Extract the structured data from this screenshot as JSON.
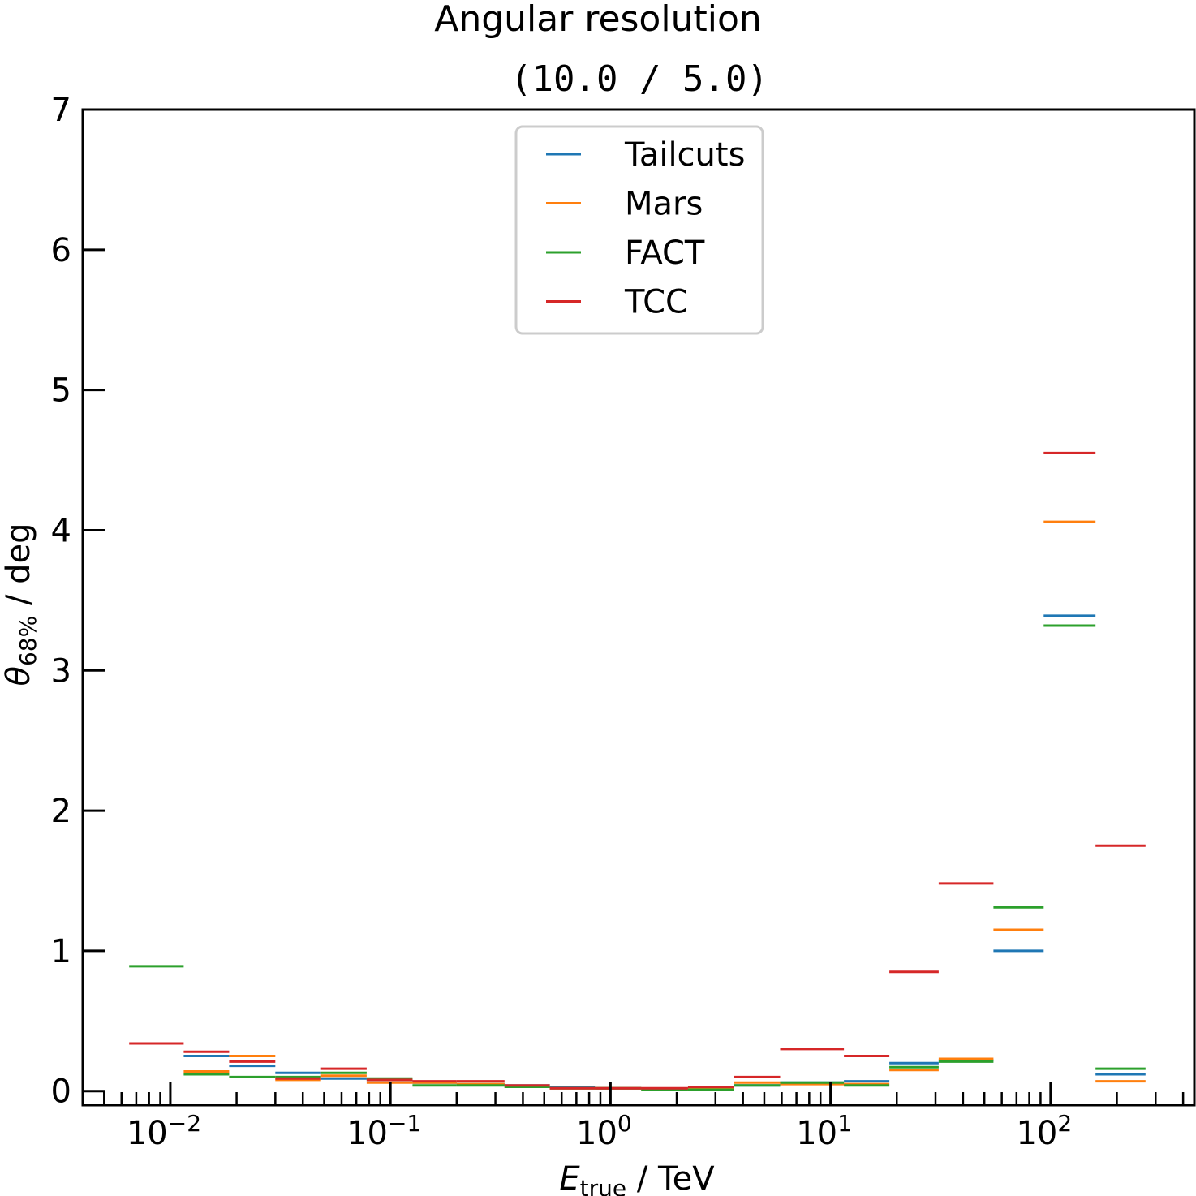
{
  "chart_data": {
    "type": "step",
    "title": "Angular resolution",
    "subtitle": "(10.0 / 5.0)",
    "xlabel": {
      "main": "E",
      "sub": "true",
      "suffix": " / TeV"
    },
    "ylabel": {
      "main": "θ",
      "sub": "68%",
      "suffix": " / deg"
    },
    "xscale": "log",
    "xlim": [
      0.004,
      450
    ],
    "ylim": [
      -0.1,
      7
    ],
    "yticks": [
      "0",
      "1",
      "2",
      "3",
      "4",
      "5",
      "6",
      "7"
    ],
    "xticks": [
      {
        "base": "10",
        "exp": "−2"
      },
      {
        "base": "10",
        "exp": "−1"
      },
      {
        "base": "10",
        "exp": "0"
      },
      {
        "base": "10",
        "exp": "1"
      },
      {
        "base": "10",
        "exp": "2"
      }
    ],
    "grid": false,
    "legend_position": "top-center",
    "series": [
      {
        "name": "Tailcuts",
        "color": "#1f77b4",
        "bins": [
          [
            0.0115,
            0.0185,
            0.25
          ],
          [
            0.0185,
            0.03,
            0.18
          ],
          [
            0.03,
            0.048,
            0.13
          ],
          [
            0.048,
            0.078,
            0.09
          ],
          [
            0.078,
            0.126,
            0.08
          ],
          [
            0.126,
            0.2,
            0.06
          ],
          [
            0.2,
            0.33,
            0.05
          ],
          [
            0.33,
            0.53,
            0.04
          ],
          [
            0.53,
            0.85,
            0.03
          ],
          [
            0.85,
            1.38,
            0.02
          ],
          [
            1.38,
            2.25,
            0.015
          ],
          [
            2.25,
            3.65,
            0.02
          ],
          [
            3.65,
            5.9,
            0.04
          ],
          [
            5.9,
            11.5,
            0.06
          ],
          [
            11.5,
            18.5,
            0.07
          ],
          [
            18.5,
            31,
            0.2
          ],
          [
            31,
            55,
            0.22
          ],
          [
            55,
            93,
            1.0
          ],
          [
            93,
            160,
            3.39
          ],
          [
            160,
            270,
            0.12
          ]
        ]
      },
      {
        "name": "Mars",
        "color": "#ff7f0e",
        "bins": [
          [
            0.0115,
            0.0185,
            0.14
          ],
          [
            0.0185,
            0.03,
            0.25
          ],
          [
            0.03,
            0.048,
            0.08
          ],
          [
            0.048,
            0.078,
            0.11
          ],
          [
            0.078,
            0.126,
            0.06
          ],
          [
            0.126,
            0.2,
            0.06
          ],
          [
            0.2,
            0.33,
            0.05
          ],
          [
            0.33,
            0.53,
            0.03
          ],
          [
            0.53,
            0.85,
            0.02
          ],
          [
            0.85,
            1.38,
            0.02
          ],
          [
            1.38,
            2.25,
            0.01
          ],
          [
            2.25,
            3.65,
            0.02
          ],
          [
            3.65,
            5.9,
            0.06
          ],
          [
            5.9,
            11.5,
            0.05
          ],
          [
            11.5,
            18.5,
            0.05
          ],
          [
            18.5,
            31,
            0.15
          ],
          [
            31,
            55,
            0.23
          ],
          [
            55,
            93,
            1.15
          ],
          [
            93,
            160,
            4.06
          ],
          [
            160,
            270,
            0.07
          ]
        ]
      },
      {
        "name": "FACT",
        "color": "#2ca02c",
        "bins": [
          [
            0.0065,
            0.0115,
            0.89
          ],
          [
            0.0115,
            0.0185,
            0.12
          ],
          [
            0.0185,
            0.03,
            0.1
          ],
          [
            0.03,
            0.048,
            0.1
          ],
          [
            0.048,
            0.078,
            0.13
          ],
          [
            0.078,
            0.126,
            0.09
          ],
          [
            0.126,
            0.2,
            0.04
          ],
          [
            0.2,
            0.33,
            0.04
          ],
          [
            0.33,
            0.53,
            0.03
          ],
          [
            0.53,
            0.85,
            0.02
          ],
          [
            0.85,
            1.38,
            0.02
          ],
          [
            1.38,
            2.25,
            0.01
          ],
          [
            2.25,
            3.65,
            0.01
          ],
          [
            3.65,
            5.9,
            0.04
          ],
          [
            5.9,
            11.5,
            0.06
          ],
          [
            11.5,
            18.5,
            0.04
          ],
          [
            18.5,
            31,
            0.17
          ],
          [
            31,
            55,
            0.21
          ],
          [
            55,
            93,
            1.31
          ],
          [
            93,
            160,
            3.32
          ],
          [
            160,
            270,
            0.16
          ]
        ]
      },
      {
        "name": "TCC",
        "color": "#d62728",
        "bins": [
          [
            0.0065,
            0.0115,
            0.34
          ],
          [
            0.0115,
            0.0185,
            0.28
          ],
          [
            0.0185,
            0.03,
            0.21
          ],
          [
            0.03,
            0.048,
            0.09
          ],
          [
            0.048,
            0.078,
            0.16
          ],
          [
            0.078,
            0.126,
            0.08
          ],
          [
            0.126,
            0.2,
            0.07
          ],
          [
            0.2,
            0.33,
            0.07
          ],
          [
            0.33,
            0.53,
            0.04
          ],
          [
            0.53,
            0.85,
            0.02
          ],
          [
            0.85,
            1.38,
            0.02
          ],
          [
            1.38,
            2.25,
            0.02
          ],
          [
            2.25,
            3.65,
            0.03
          ],
          [
            3.65,
            5.9,
            0.1
          ],
          [
            5.9,
            11.5,
            0.3
          ],
          [
            11.5,
            18.5,
            0.25
          ],
          [
            18.5,
            31,
            0.85
          ],
          [
            31,
            55,
            1.48
          ],
          [
            93,
            160,
            4.55
          ],
          [
            160,
            270,
            1.75
          ]
        ]
      }
    ]
  }
}
